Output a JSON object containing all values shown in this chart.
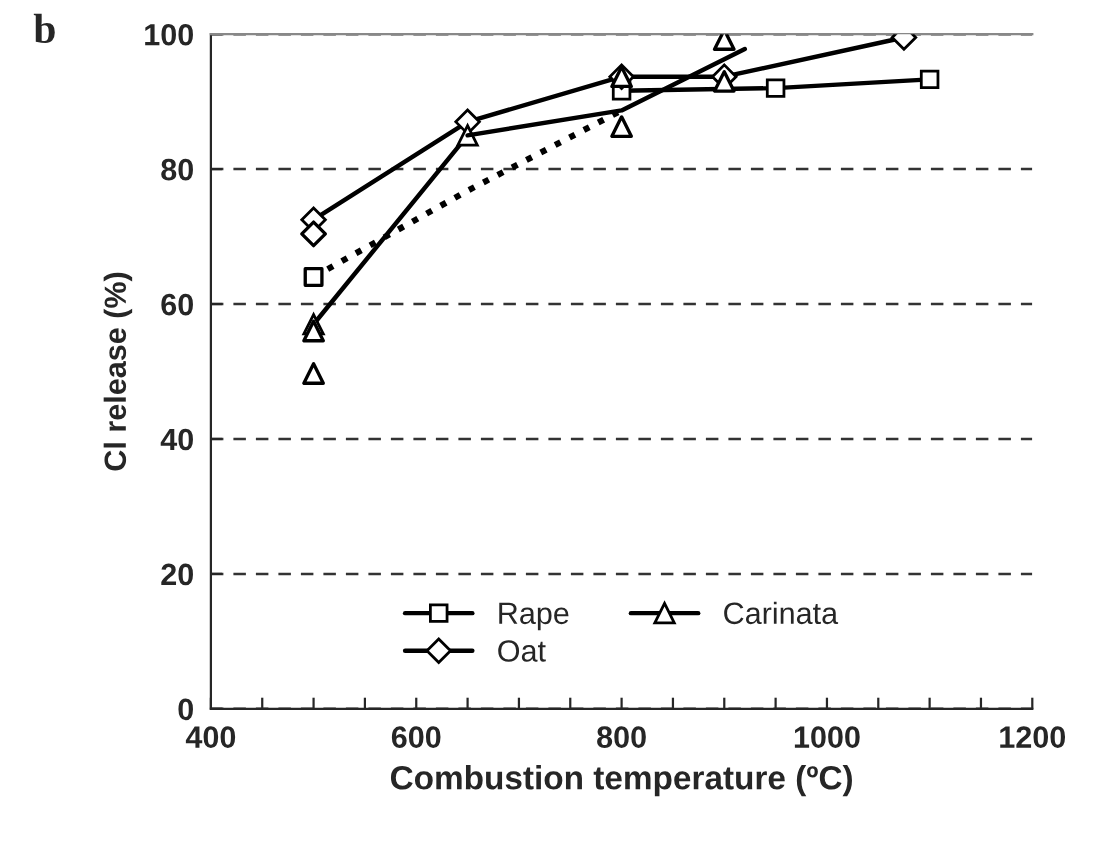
{
  "chart_data": {
    "type": "line",
    "xlabel": "Combustion temperature (ºC)",
    "ylabel": "Cl release (%)",
    "annotations": [
      "b"
    ],
    "xlim": [
      400,
      1200
    ],
    "xticks": [
      400,
      {
        "value": 450,
        "label": null
      },
      {
        "value": 500,
        "label": null
      },
      {
        "value": 550,
        "label": null
      },
      600,
      {
        "value": 650,
        "label": null
      },
      {
        "value": 700,
        "label": null
      },
      {
        "value": 750,
        "label": null
      },
      800,
      {
        "value": 850,
        "label": null
      },
      {
        "value": 900,
        "label": null
      },
      {
        "value": 950,
        "label": null
      },
      1000,
      {
        "value": 1050,
        "label": null
      },
      {
        "value": 1100,
        "label": null
      },
      {
        "value": 1150,
        "label": null
      },
      1200
    ],
    "ylim": [
      0,
      100
    ],
    "yticks": [
      0,
      20,
      40,
      60,
      80,
      100
    ],
    "grid": "y",
    "legend": "bottom",
    "series": [
      {
        "name": "Rape",
        "color": "#000000",
        "marker": "square",
        "line_style": "solid",
        "x": [
          800,
          950,
          1100
        ],
        "values": [
          91.6,
          92,
          93.3
        ]
      },
      {
        "name": "Oat",
        "color": "#000000",
        "marker": "diamond",
        "line_style": "solid",
        "x": [
          500,
          650,
          800,
          900,
          1075
        ],
        "values": [
          72.5,
          87,
          93.7,
          93.7,
          99.5
        ]
      },
      {
        "name": "Carinata",
        "color": "#000000",
        "marker": "triangle",
        "line_style": "solid",
        "x": [
          500,
          650
        ],
        "values": [
          57,
          85
        ]
      },
      {
        "color": "#000000",
        "marker": "none",
        "line_style": "solid",
        "x": [
          650,
          800,
          920
        ],
        "values": [
          85,
          88.7,
          97.8
        ]
      },
      {
        "color": "#000000",
        "marker": "none",
        "line_style": "dotted",
        "x": [
          500,
          650,
          800
        ],
        "values": [
          64,
          76.8,
          88.7
        ]
      },
      {
        "color": "#000000",
        "type": "scatter",
        "marker": "square",
        "x": [
          500
        ],
        "values": [
          64
        ]
      },
      {
        "color": "#000000",
        "type": "scatter",
        "marker": "diamond",
        "x": [
          500
        ],
        "values": [
          70.4
        ]
      },
      {
        "color": "#000000",
        "type": "scatter",
        "marker": "triangle",
        "x": [
          500,
          500,
          800,
          800,
          900,
          900
        ],
        "values": [
          56,
          49.7,
          93.7,
          86.3,
          99.2,
          93
        ]
      }
    ]
  }
}
